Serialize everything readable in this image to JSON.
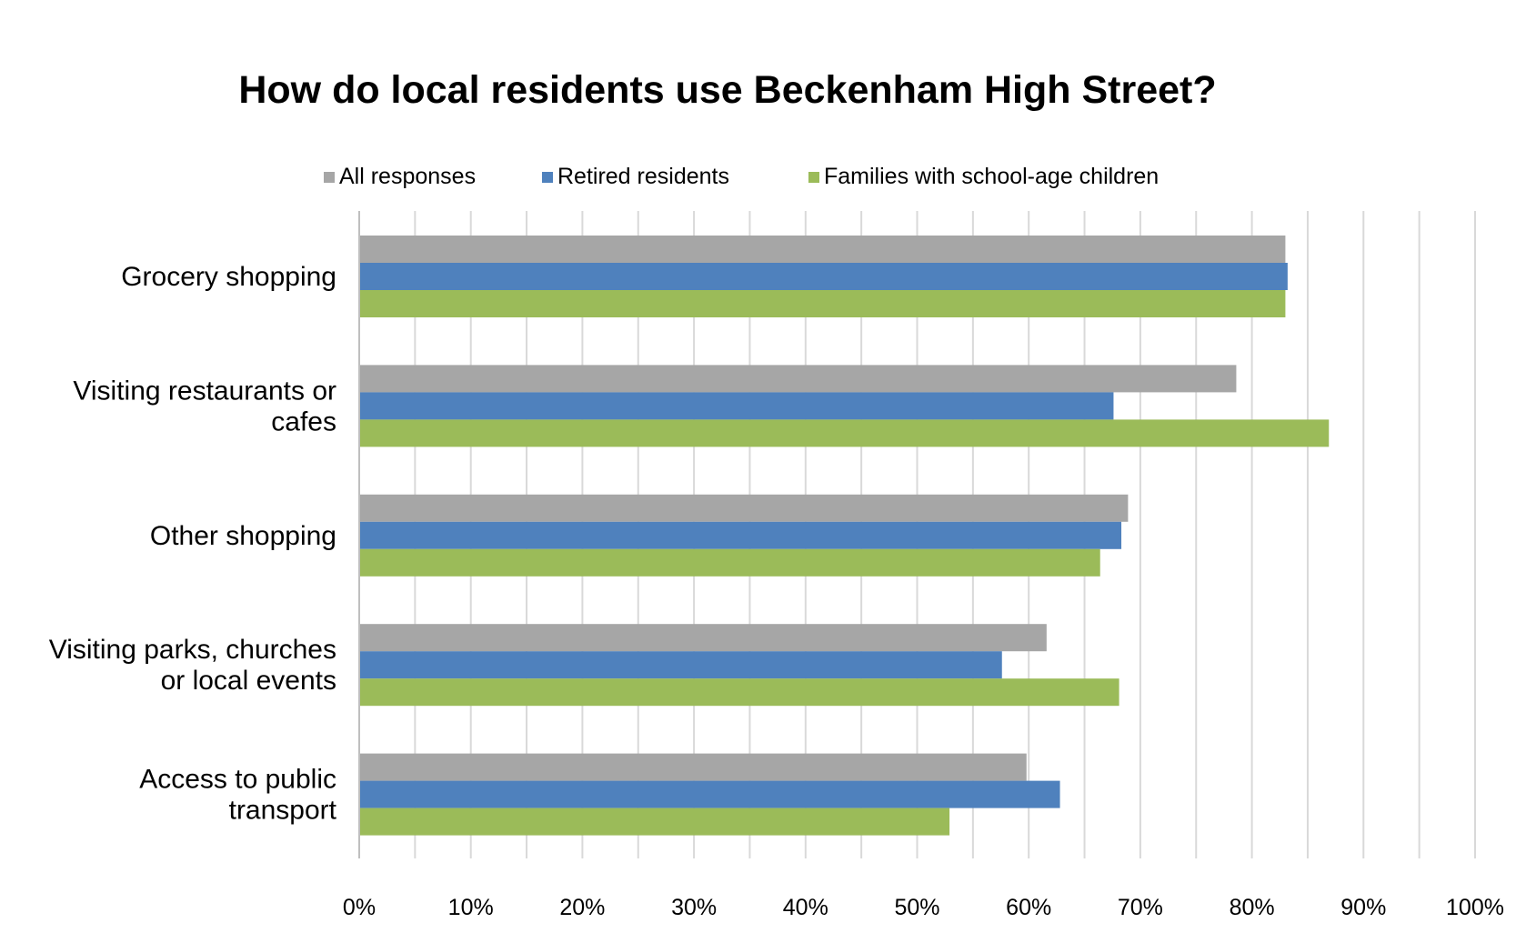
{
  "chart_data": {
    "type": "bar",
    "orientation": "horizontal",
    "title": "How do local residents use Beckenham High Street?",
    "categories": [
      [
        "Grocery shopping"
      ],
      [
        "Visiting restaurants or",
        "cafes"
      ],
      [
        "Other shopping"
      ],
      [
        "Visiting parks, churches",
        "or local events"
      ],
      [
        "Access to public",
        "transport"
      ]
    ],
    "series": [
      {
        "name": "All responses",
        "color": "#a6a6a6",
        "values": [
          83.0,
          78.6,
          68.9,
          61.6,
          59.8
        ]
      },
      {
        "name": "Retired residents",
        "color": "#4f81bd",
        "values": [
          83.2,
          67.6,
          68.3,
          57.6,
          62.8
        ]
      },
      {
        "name": "Families with school-age children",
        "color": "#9bbb59",
        "values": [
          83.0,
          86.9,
          66.4,
          68.1,
          52.9
        ]
      }
    ],
    "xlim": [
      0,
      100
    ],
    "xticks": [
      "0%",
      "10%",
      "20%",
      "30%",
      "40%",
      "50%",
      "60%",
      "70%",
      "80%",
      "90%",
      "100%"
    ],
    "grid": true,
    "legend_position": "top"
  }
}
